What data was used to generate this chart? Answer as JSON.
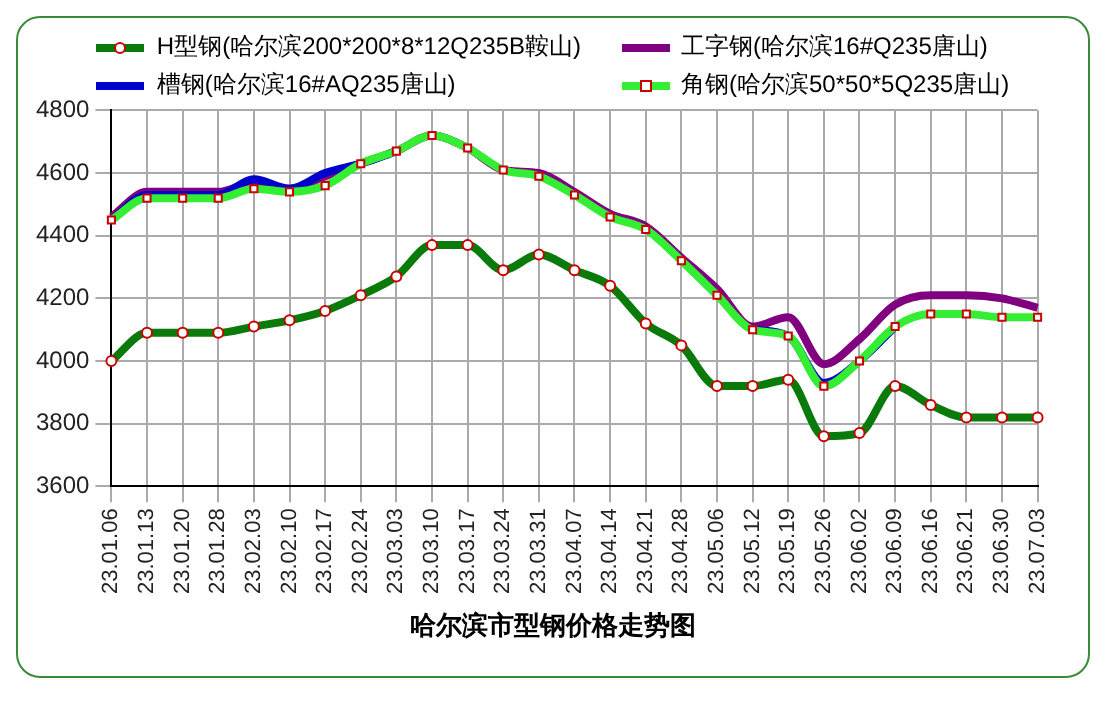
{
  "chart_data": {
    "type": "line",
    "title": "哈尔滨市型钢价格走势图",
    "categories": [
      "23.01.06",
      "23.01.13",
      "23.01.20",
      "23.01.28",
      "23.02.03",
      "23.02.10",
      "23.02.17",
      "23.02.24",
      "23.03.03",
      "23.03.10",
      "23.03.17",
      "23.03.24",
      "23.03.31",
      "23.04.07",
      "23.04.14",
      "23.04.21",
      "23.04.28",
      "23.05.06",
      "23.05.12",
      "23.05.19",
      "23.05.26",
      "23.06.02",
      "23.06.09",
      "23.06.16",
      "23.06.21",
      "23.06.30",
      "23.07.03"
    ],
    "series": [
      {
        "name": "H型钢(哈尔滨200*200*8*12Q235B鞍山)",
        "color": "#0a7a0a",
        "marker": "circle",
        "values": [
          4000,
          4090,
          4090,
          4090,
          4110,
          4130,
          4160,
          4210,
          4270,
          4370,
          4370,
          4290,
          4340,
          4290,
          4240,
          4120,
          4050,
          3920,
          3920,
          3940,
          3760,
          3770,
          3920,
          3860,
          3820,
          3820,
          3820
        ]
      },
      {
        "name": "工字钢(哈尔滨16#Q235唐山)",
        "color": "#800080",
        "marker": "none",
        "values": [
          4460,
          4540,
          4540,
          4540,
          4570,
          4550,
          4590,
          4630,
          4670,
          4720,
          4680,
          4610,
          4600,
          4540,
          4470,
          4430,
          4330,
          4230,
          4110,
          4140,
          3990,
          4070,
          4180,
          4210,
          4210,
          4200,
          4170
        ]
      },
      {
        "name": "槽钢(哈尔滨16#AQ235唐山)",
        "color": "#0000cc",
        "marker": "none",
        "values": [
          4450,
          4530,
          4530,
          4530,
          4580,
          4550,
          4600,
          4630,
          4670,
          null,
          null,
          null,
          null,
          null,
          null,
          null,
          null,
          null,
          4100,
          4080,
          3930,
          4000,
          4110,
          null,
          null,
          null,
          null
        ]
      },
      {
        "name": "角钢(哈尔滨50*50*5Q235唐山)",
        "color": "#33ee33",
        "marker": "square",
        "values": [
          4450,
          4520,
          4520,
          4520,
          4550,
          4540,
          4560,
          4630,
          4670,
          4720,
          4680,
          4610,
          4590,
          4530,
          4460,
          4420,
          4320,
          4210,
          4100,
          4080,
          3920,
          4000,
          4110,
          4150,
          4150,
          4140,
          4140
        ]
      }
    ],
    "ylim": [
      3600,
      4800
    ],
    "yticks": [
      3600,
      3800,
      4000,
      4200,
      4400,
      4600,
      4800
    ],
    "grid": true,
    "legend": "top"
  }
}
